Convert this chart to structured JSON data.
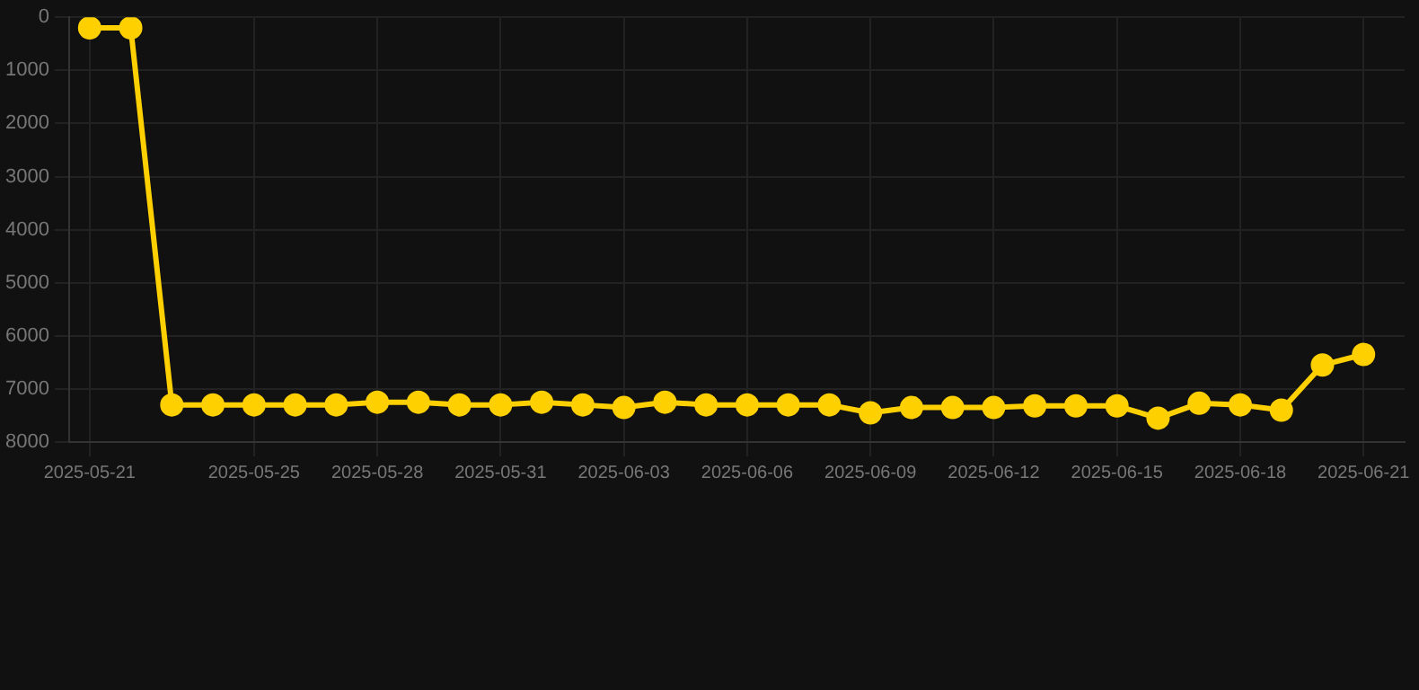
{
  "chart_data": {
    "type": "line",
    "x": [
      "2025-05-21",
      "2025-05-22",
      "2025-05-23",
      "2025-05-24",
      "2025-05-25",
      "2025-05-26",
      "2025-05-27",
      "2025-05-28",
      "2025-05-29",
      "2025-05-30",
      "2025-05-31",
      "2025-06-01",
      "2025-06-02",
      "2025-06-03",
      "2025-06-04",
      "2025-06-05",
      "2025-06-06",
      "2025-06-07",
      "2025-06-08",
      "2025-06-09",
      "2025-06-10",
      "2025-06-11",
      "2025-06-12",
      "2025-06-13",
      "2025-06-14",
      "2025-06-15",
      "2025-06-16",
      "2025-06-17",
      "2025-06-18",
      "2025-06-19",
      "2025-06-20",
      "2025-06-21"
    ],
    "series": [
      {
        "color": "#ffd000",
        "values": [
          200,
          200,
          7300,
          7300,
          7300,
          7300,
          7300,
          7250,
          7250,
          7300,
          7300,
          7250,
          7300,
          7350,
          7250,
          7300,
          7300,
          7300,
          7300,
          7450,
          7350,
          7350,
          7350,
          7320,
          7320,
          7320,
          7550,
          7270,
          7300,
          7400,
          6550,
          6350
        ]
      }
    ],
    "xlim": [
      "2025-05-20T12:00",
      "2025-06-22"
    ],
    "xticks": [
      "2025-05-21",
      "2025-05-25",
      "2025-05-28",
      "2025-05-31",
      "2025-06-03",
      "2025-06-06",
      "2025-06-09",
      "2025-06-12",
      "2025-06-15",
      "2025-06-18",
      "2025-06-21"
    ],
    "ylim": [
      8000,
      0
    ],
    "yticks": [
      0,
      1000,
      2000,
      3000,
      4000,
      5000,
      6000,
      7000,
      8000
    ],
    "grid": true,
    "marker": "circle",
    "line_style": "solid"
  }
}
